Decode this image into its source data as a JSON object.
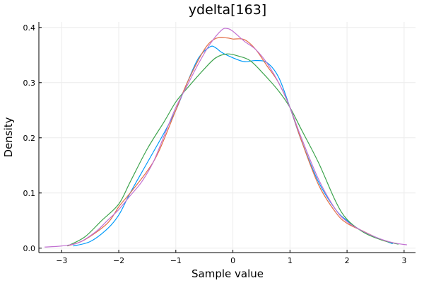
{
  "chart_data": {
    "type": "line",
    "title": "ydelta[163]",
    "xlabel": "Sample value",
    "ylabel": "Density",
    "xlim": [
      -3.4,
      3.2
    ],
    "ylim": [
      -0.008,
      0.41
    ],
    "xticks": [
      -3,
      -2,
      -1,
      0,
      1,
      2,
      3
    ],
    "xtick_labels": [
      "−3",
      "−2",
      "−1",
      "0",
      "1",
      "2",
      "3"
    ],
    "yticks": [
      0,
      0.1,
      0.2,
      0.3,
      0.4
    ],
    "ytick_labels": [
      "0.0",
      "0.1",
      "0.2",
      "0.3",
      "0.4"
    ],
    "grid": true,
    "legend": "none",
    "series": [
      {
        "color": "#009AFA",
        "x": [
          -2.8,
          -2.5,
          -2.2,
          -2.0,
          -1.8,
          -1.5,
          -1.2,
          -1.0,
          -0.8,
          -0.6,
          -0.4,
          -0.3,
          -0.2,
          0.0,
          0.2,
          0.4,
          0.6,
          0.8,
          1.0,
          1.2,
          1.5,
          1.8,
          2.0,
          2.2,
          2.5,
          2.8
        ],
        "y": [
          0.004,
          0.012,
          0.035,
          0.06,
          0.1,
          0.155,
          0.21,
          0.25,
          0.3,
          0.345,
          0.365,
          0.363,
          0.355,
          0.345,
          0.338,
          0.34,
          0.336,
          0.31,
          0.255,
          0.195,
          0.12,
          0.07,
          0.05,
          0.035,
          0.02,
          0.008
        ]
      },
      {
        "color": "#E36F47",
        "x": [
          -2.9,
          -2.6,
          -2.2,
          -2.0,
          -1.8,
          -1.5,
          -1.3,
          -1.0,
          -0.8,
          -0.5,
          -0.3,
          -0.1,
          0.0,
          0.2,
          0.4,
          0.6,
          0.8,
          1.0,
          1.2,
          1.5,
          1.8,
          2.0,
          2.3,
          2.6,
          2.8
        ],
        "y": [
          0.004,
          0.015,
          0.045,
          0.075,
          0.1,
          0.14,
          0.175,
          0.25,
          0.3,
          0.36,
          0.38,
          0.381,
          0.379,
          0.378,
          0.36,
          0.33,
          0.3,
          0.255,
          0.195,
          0.115,
          0.065,
          0.045,
          0.03,
          0.015,
          0.01
        ]
      },
      {
        "color": "#3EA44E",
        "x": [
          -2.9,
          -2.6,
          -2.3,
          -2.0,
          -1.8,
          -1.5,
          -1.2,
          -1.0,
          -0.8,
          -0.5,
          -0.3,
          -0.1,
          0.1,
          0.3,
          0.5,
          0.8,
          1.0,
          1.2,
          1.5,
          1.8,
          2.0,
          2.3,
          2.6,
          2.9
        ],
        "y": [
          0.004,
          0.02,
          0.05,
          0.08,
          0.12,
          0.18,
          0.23,
          0.265,
          0.29,
          0.325,
          0.345,
          0.352,
          0.348,
          0.34,
          0.32,
          0.285,
          0.255,
          0.215,
          0.155,
          0.085,
          0.052,
          0.028,
          0.015,
          0.007
        ]
      },
      {
        "color": "#C271D2",
        "x": [
          -3.3,
          -3.0,
          -2.7,
          -2.4,
          -2.2,
          -2.0,
          -1.8,
          -1.6,
          -1.4,
          -1.2,
          -1.0,
          -0.8,
          -0.6,
          -0.4,
          -0.2,
          -0.1,
          0.0,
          0.2,
          0.4,
          0.6,
          0.8,
          1.0,
          1.2,
          1.5,
          1.8,
          2.0,
          2.2,
          2.5,
          2.8,
          3.05
        ],
        "y": [
          0.002,
          0.004,
          0.01,
          0.03,
          0.05,
          0.07,
          0.095,
          0.12,
          0.155,
          0.205,
          0.255,
          0.295,
          0.335,
          0.37,
          0.395,
          0.398,
          0.393,
          0.375,
          0.36,
          0.335,
          0.3,
          0.255,
          0.2,
          0.125,
          0.07,
          0.048,
          0.035,
          0.02,
          0.01,
          0.006
        ]
      }
    ]
  }
}
